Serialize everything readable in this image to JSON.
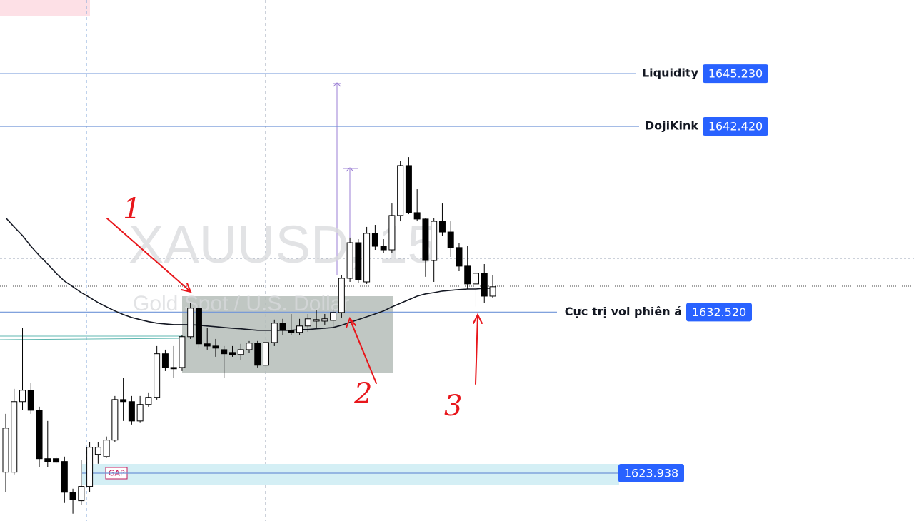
{
  "chart_data": {
    "type": "candlestick",
    "watermark": {
      "symbol": "XAUUSD, 15",
      "description": "Gold Spot / U.S. Dollar"
    },
    "ylim": [
      1621.39,
      1649.15
    ],
    "candles": {
      "open": [
        1623.99,
        1623.99,
        1627.75,
        1628.36,
        1627.29,
        1624.71,
        1624.71,
        1624.56,
        1622.92,
        1622.47,
        1623.23,
        1624.94,
        1624.82,
        1625.7,
        1627.86,
        1627.75,
        1626.72,
        1627.6,
        1627.98,
        1630.3,
        1629.57,
        1629.57,
        1631.21,
        1632.73,
        1630.83,
        1630.71,
        1630.52,
        1630.37,
        1630.26,
        1630.52,
        1630.87,
        1629.69,
        1630.9,
        1631.93,
        1631.55,
        1631.44,
        1631.78,
        1632.04,
        1632.04,
        1632.08,
        1632.5,
        1634.32,
        1636.22,
        1634.13,
        1636.72,
        1636.03,
        1635.84,
        1637.67,
        1640.33,
        1637.82,
        1637.48,
        1635.27,
        1637.36,
        1636.79,
        1635.96,
        1634.97,
        1634.02,
        1634.59,
        1633.37
      ],
      "high": [
        1627.1,
        1628.43,
        1631.66,
        1628.74,
        1627.48,
        1626.72,
        1624.82,
        1624.82,
        1623.11,
        1624.63,
        1625.58,
        1625.58,
        1625.89,
        1628.05,
        1629.0,
        1628.05,
        1628.05,
        1628.24,
        1630.71,
        1630.52,
        1630.71,
        1631.28,
        1632.99,
        1632.88,
        1631.66,
        1631.09,
        1630.71,
        1630.71,
        1630.83,
        1630.98,
        1630.98,
        1631.09,
        1632.12,
        1632.16,
        1632.42,
        1632.16,
        1632.42,
        1632.61,
        1632.42,
        1632.69,
        1634.51,
        1636.49,
        1636.41,
        1637.06,
        1637.17,
        1636.41,
        1638.31,
        1640.59,
        1640.78,
        1639.07,
        1637.55,
        1637.55,
        1638.31,
        1637.36,
        1636.22,
        1636.03,
        1634.7,
        1635.08,
        1634.51
      ],
      "low": [
        1622.92,
        1623.87,
        1627.29,
        1627.1,
        1624.25,
        1624.25,
        1624.44,
        1622.35,
        1621.78,
        1622.24,
        1622.92,
        1624.44,
        1624.75,
        1625.58,
        1626.72,
        1626.53,
        1626.65,
        1627.48,
        1627.86,
        1629.38,
        1629.0,
        1629.38,
        1631.09,
        1630.64,
        1630.52,
        1630.14,
        1629.0,
        1630.14,
        1629.95,
        1630.33,
        1629.57,
        1629.46,
        1630.71,
        1631.28,
        1631.28,
        1631.28,
        1631.47,
        1631.66,
        1631.85,
        1631.66,
        1632.23,
        1634.13,
        1634.06,
        1634.02,
        1635.84,
        1635.65,
        1635.65,
        1637.36,
        1637.74,
        1637.36,
        1634.4,
        1634.13,
        1636.6,
        1635.46,
        1634.7,
        1633.75,
        1632.8,
        1632.99,
        1633.26
      ],
      "close": [
        1626.34,
        1627.75,
        1628.36,
        1627.29,
        1624.71,
        1624.56,
        1624.52,
        1622.92,
        1622.54,
        1623.23,
        1625.32,
        1625.32,
        1625.7,
        1627.86,
        1627.75,
        1626.72,
        1627.6,
        1627.98,
        1630.3,
        1629.57,
        1629.5,
        1631.21,
        1632.73,
        1630.83,
        1630.71,
        1630.6,
        1630.3,
        1630.26,
        1630.52,
        1630.87,
        1629.69,
        1630.9,
        1631.93,
        1631.55,
        1631.44,
        1631.78,
        1632.16,
        1632.12,
        1632.16,
        1632.5,
        1634.32,
        1636.22,
        1634.25,
        1636.72,
        1636.03,
        1635.84,
        1637.67,
        1640.33,
        1637.82,
        1637.48,
        1635.27,
        1637.36,
        1636.79,
        1635.96,
        1634.97,
        1634.02,
        1634.59,
        1633.37,
        1633.87
      ]
    },
    "up_color": "#ffffff",
    "down_color": "#000000",
    "ma": [
      1637.55,
      1637.06,
      1636.6,
      1636.03,
      1635.54,
      1635.08,
      1634.59,
      1634.17,
      1633.87,
      1633.56,
      1633.3,
      1633.03,
      1632.8,
      1632.58,
      1632.39,
      1632.23,
      1632.12,
      1632.01,
      1631.93,
      1631.89,
      1631.85,
      1631.85,
      1631.85,
      1631.82,
      1631.78,
      1631.74,
      1631.7,
      1631.66,
      1631.63,
      1631.59,
      1631.55,
      1631.55,
      1631.55,
      1631.55,
      1631.55,
      1631.59,
      1631.59,
      1631.63,
      1631.66,
      1631.7,
      1631.82,
      1631.97,
      1632.12,
      1632.27,
      1632.42,
      1632.58,
      1632.8,
      1632.99,
      1633.18,
      1633.37,
      1633.49,
      1633.56,
      1633.64,
      1633.68,
      1633.72,
      1633.75,
      1633.75,
      1633.79,
      1633.79
    ],
    "ma_color": "#131722",
    "levels": [
      {
        "label": "Liquidity",
        "value": 1645.23,
        "value_label": "1645.230"
      },
      {
        "label": "DojiKink",
        "value": 1642.42,
        "value_label": "1642.420"
      },
      {
        "label": "Cực trị vol phiên á",
        "value": 1632.52,
        "value_label": "1632.520"
      },
      {
        "value": 1623.938,
        "value_label": "1623.938"
      }
    ],
    "level_color": "#6f95d8",
    "label_box_color": "#2962ff",
    "gap_label": "GAP",
    "annotations": [
      "1",
      "2",
      "3"
    ]
  }
}
